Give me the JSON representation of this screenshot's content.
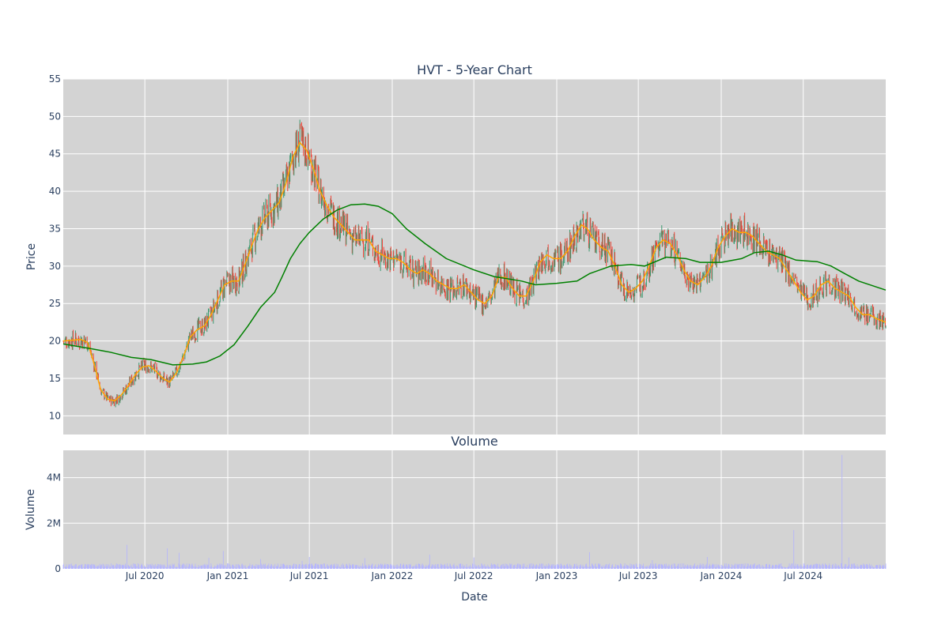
{
  "chart_data": [
    {
      "type": "candlestick",
      "title": "HVT - 5-Year Chart",
      "ylabel": "Price",
      "ylim": [
        7.5,
        55
      ],
      "yticks": [
        10,
        15,
        20,
        25,
        30,
        35,
        40,
        45,
        50,
        55
      ],
      "x_range": [
        "2020-01-02",
        "2024-12-31"
      ],
      "grid": true,
      "background": "#d3d3d3",
      "up_color": "#3d9970",
      "down_color": "#ef4136",
      "series": [
        {
          "type": "line",
          "color": "#ffa500",
          "points": [
            [
              "2020-01-02",
              20.0
            ],
            [
              "2020-02-10",
              20.2
            ],
            [
              "2020-02-25",
              19.8
            ],
            [
              "2020-03-10",
              17.0
            ],
            [
              "2020-03-25",
              13.5
            ],
            [
              "2020-04-10",
              12.2
            ],
            [
              "2020-04-25",
              12.0
            ],
            [
              "2020-05-10",
              12.8
            ],
            [
              "2020-05-25",
              14.0
            ],
            [
              "2020-06-10",
              15.5
            ],
            [
              "2020-06-25",
              16.5
            ],
            [
              "2020-07-10",
              16.7
            ],
            [
              "2020-07-25",
              16.0
            ],
            [
              "2020-08-10",
              15.0
            ],
            [
              "2020-08-25",
              14.5
            ],
            [
              "2020-09-10",
              15.8
            ],
            [
              "2020-09-25",
              18.0
            ],
            [
              "2020-10-10",
              20.5
            ],
            [
              "2020-10-25",
              21.5
            ],
            [
              "2020-11-10",
              22.0
            ],
            [
              "2020-11-25",
              23.5
            ],
            [
              "2020-12-10",
              25.5
            ],
            [
              "2020-12-25",
              27.5
            ],
            [
              "2021-01-10",
              28.0
            ],
            [
              "2021-01-25",
              28.0
            ],
            [
              "2021-02-10",
              30.5
            ],
            [
              "2021-02-25",
              33.0
            ],
            [
              "2021-03-10",
              35.0
            ],
            [
              "2021-03-25",
              36.5
            ],
            [
              "2021-04-10",
              37.5
            ],
            [
              "2021-04-25",
              38.5
            ],
            [
              "2021-05-10",
              41.0
            ],
            [
              "2021-05-25",
              44.5
            ],
            [
              "2021-06-10",
              46.5
            ],
            [
              "2021-06-25",
              45.5
            ],
            [
              "2021-07-10",
              43.0
            ],
            [
              "2021-07-25",
              40.0
            ],
            [
              "2021-08-10",
              38.0
            ],
            [
              "2021-08-25",
              36.5
            ],
            [
              "2021-09-10",
              35.5
            ],
            [
              "2021-09-25",
              34.5
            ],
            [
              "2021-10-10",
              33.5
            ],
            [
              "2021-10-25",
              33.5
            ],
            [
              "2021-11-10",
              33.5
            ],
            [
              "2021-11-25",
              32.0
            ],
            [
              "2021-12-10",
              31.5
            ],
            [
              "2021-12-25",
              31.0
            ],
            [
              "2022-01-10",
              31.0
            ],
            [
              "2022-01-25",
              30.5
            ],
            [
              "2022-02-10",
              29.5
            ],
            [
              "2022-02-25",
              29.0
            ],
            [
              "2022-03-10",
              29.5
            ],
            [
              "2022-03-25",
              29.0
            ],
            [
              "2022-04-10",
              28.0
            ],
            [
              "2022-04-25",
              27.5
            ],
            [
              "2022-05-10",
              27.0
            ],
            [
              "2022-05-25",
              27.0
            ],
            [
              "2022-06-10",
              27.5
            ],
            [
              "2022-06-25",
              26.5
            ],
            [
              "2022-07-10",
              25.5
            ],
            [
              "2022-07-25",
              25.0
            ],
            [
              "2022-08-10",
              26.0
            ],
            [
              "2022-08-25",
              28.5
            ],
            [
              "2022-09-10",
              28.5
            ],
            [
              "2022-09-25",
              27.0
            ],
            [
              "2022-10-10",
              26.0
            ],
            [
              "2022-10-25",
              26.0
            ],
            [
              "2022-11-10",
              28.0
            ],
            [
              "2022-11-25",
              30.5
            ],
            [
              "2022-12-10",
              31.5
            ],
            [
              "2022-12-25",
              31.0
            ],
            [
              "2023-01-10",
              31.0
            ],
            [
              "2023-01-25",
              32.0
            ],
            [
              "2023-02-10",
              34.0
            ],
            [
              "2023-02-25",
              35.5
            ],
            [
              "2023-03-10",
              35.0
            ],
            [
              "2023-03-25",
              33.5
            ],
            [
              "2023-04-10",
              32.5
            ],
            [
              "2023-04-25",
              32.0
            ],
            [
              "2023-05-10",
              30.0
            ],
            [
              "2023-05-25",
              27.5
            ],
            [
              "2023-06-10",
              26.5
            ],
            [
              "2023-06-25",
              27.0
            ],
            [
              "2023-07-10",
              28.0
            ],
            [
              "2023-07-25",
              30.0
            ],
            [
              "2023-08-10",
              32.5
            ],
            [
              "2023-08-25",
              33.5
            ],
            [
              "2023-09-10",
              33.0
            ],
            [
              "2023-09-25",
              31.5
            ],
            [
              "2023-10-10",
              29.5
            ],
            [
              "2023-10-25",
              28.0
            ],
            [
              "2023-11-10",
              27.5
            ],
            [
              "2023-11-25",
              28.5
            ],
            [
              "2023-12-10",
              30.0
            ],
            [
              "2023-12-25",
              32.5
            ],
            [
              "2024-01-10",
              34.0
            ],
            [
              "2024-01-25",
              35.0
            ],
            [
              "2024-02-10",
              34.5
            ],
            [
              "2024-02-25",
              34.5
            ],
            [
              "2024-03-10",
              34.0
            ],
            [
              "2024-03-25",
              33.0
            ],
            [
              "2024-04-10",
              32.0
            ],
            [
              "2024-04-25",
              31.5
            ],
            [
              "2024-05-10",
              31.0
            ],
            [
              "2024-05-25",
              29.5
            ],
            [
              "2024-06-10",
              28.0
            ],
            [
              "2024-06-25",
              26.5
            ],
            [
              "2024-07-10",
              25.5
            ],
            [
              "2024-07-25",
              26.0
            ],
            [
              "2024-08-10",
              27.5
            ],
            [
              "2024-08-25",
              28.0
            ],
            [
              "2024-09-10",
              27.0
            ],
            [
              "2024-09-25",
              26.5
            ],
            [
              "2024-10-10",
              26.0
            ],
            [
              "2024-10-25",
              24.5
            ],
            [
              "2024-11-10",
              23.5
            ],
            [
              "2024-11-25",
              23.5
            ],
            [
              "2024-12-10",
              23.0
            ],
            [
              "2024-12-31",
              22.5
            ]
          ]
        },
        {
          "type": "line",
          "color": "#008000",
          "points": [
            [
              "2020-01-02",
              19.6
            ],
            [
              "2020-03-01",
              19.0
            ],
            [
              "2020-04-15",
              18.5
            ],
            [
              "2020-06-01",
              17.8
            ],
            [
              "2020-07-15",
              17.5
            ],
            [
              "2020-09-01",
              16.8
            ],
            [
              "2020-10-15",
              16.9
            ],
            [
              "2020-11-15",
              17.2
            ],
            [
              "2020-12-15",
              18.0
            ],
            [
              "2021-01-15",
              19.5
            ],
            [
              "2021-02-15",
              22.0
            ],
            [
              "2021-03-15",
              24.5
            ],
            [
              "2021-04-15",
              26.5
            ],
            [
              "2021-05-01",
              28.5
            ],
            [
              "2021-05-20",
              31.0
            ],
            [
              "2021-06-10",
              33.0
            ],
            [
              "2021-07-01",
              34.5
            ],
            [
              "2021-08-01",
              36.3
            ],
            [
              "2021-09-01",
              37.5
            ],
            [
              "2021-10-01",
              38.2
            ],
            [
              "2021-11-01",
              38.3
            ],
            [
              "2021-12-01",
              38.0
            ],
            [
              "2022-01-01",
              37.0
            ],
            [
              "2022-02-01",
              35.0
            ],
            [
              "2022-03-15",
              33.0
            ],
            [
              "2022-05-01",
              31.0
            ],
            [
              "2022-07-01",
              29.5
            ],
            [
              "2022-08-15",
              28.6
            ],
            [
              "2022-10-15",
              28.0
            ],
            [
              "2022-11-15",
              27.5
            ],
            [
              "2023-01-01",
              27.7
            ],
            [
              "2023-02-15",
              28.0
            ],
            [
              "2023-03-15",
              29.0
            ],
            [
              "2023-05-01",
              30.0
            ],
            [
              "2023-06-15",
              30.2
            ],
            [
              "2023-07-15",
              30.0
            ],
            [
              "2023-09-01",
              31.2
            ],
            [
              "2023-10-15",
              31.0
            ],
            [
              "2023-11-15",
              30.5
            ],
            [
              "2024-01-01",
              30.5
            ],
            [
              "2024-02-15",
              31.0
            ],
            [
              "2024-03-15",
              31.8
            ],
            [
              "2024-04-15",
              32.0
            ],
            [
              "2024-05-15",
              31.5
            ],
            [
              "2024-06-15",
              30.8
            ],
            [
              "2024-08-01",
              30.6
            ],
            [
              "2024-09-01",
              30.0
            ],
            [
              "2024-10-01",
              29.0
            ],
            [
              "2024-11-01",
              28.0
            ],
            [
              "2024-12-31",
              26.8
            ]
          ]
        }
      ]
    },
    {
      "type": "bar",
      "title": "Volume",
      "ylabel": "Volume",
      "xlabel": "Date",
      "ylim": [
        0,
        5200000
      ],
      "yticks": [
        0,
        2000000,
        4000000
      ],
      "ytick_labels": [
        "0",
        "2M",
        "4M"
      ],
      "xticks": [
        "2020-07-01",
        "2021-01-01",
        "2021-07-01",
        "2022-01-01",
        "2022-07-01",
        "2023-01-01",
        "2023-07-01",
        "2024-01-01",
        "2024-07-01"
      ],
      "xtick_labels": [
        "Jul 2020",
        "Jan 2021",
        "Jul 2021",
        "Jan 2022",
        "Jul 2022",
        "Jan 2023",
        "Jul 2023",
        "Jan 2024",
        "Jul 2024"
      ],
      "bar_color": "#b3b3ff",
      "baseline_volume": 120000,
      "spikes": [
        [
          "2020-05-22",
          1050000
        ],
        [
          "2020-08-20",
          900000
        ],
        [
          "2020-09-15",
          700000
        ],
        [
          "2020-11-20",
          480000
        ],
        [
          "2020-12-22",
          780000
        ],
        [
          "2021-03-15",
          430000
        ],
        [
          "2021-06-15",
          350000
        ],
        [
          "2021-07-01",
          520000
        ],
        [
          "2021-11-01",
          470000
        ],
        [
          "2022-01-15",
          620000
        ],
        [
          "2022-03-25",
          620000
        ],
        [
          "2022-07-01",
          500000
        ],
        [
          "2022-10-15",
          730000
        ],
        [
          "2023-01-01",
          520000
        ],
        [
          "2023-03-15",
          730000
        ],
        [
          "2023-08-01",
          380000
        ],
        [
          "2023-12-01",
          520000
        ],
        [
          "2024-06-10",
          1700000
        ],
        [
          "2024-09-25",
          5000000
        ],
        [
          "2024-10-10",
          500000
        ]
      ]
    }
  ]
}
